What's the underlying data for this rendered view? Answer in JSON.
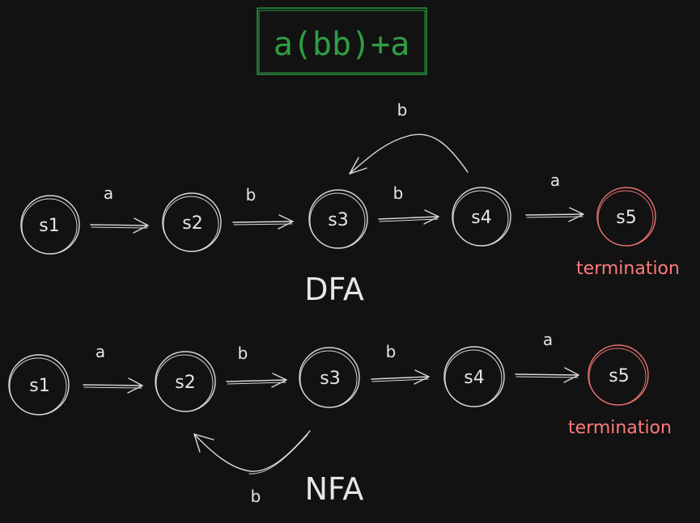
{
  "title": "a(bb)+a",
  "dfa": {
    "label": "DFA",
    "states": [
      "s1",
      "s2",
      "s3",
      "s4",
      "s5"
    ],
    "edges": [
      "a",
      "b",
      "b",
      "a"
    ],
    "loop_label": "b",
    "terminal_label": "termination"
  },
  "nfa": {
    "label": "NFA",
    "states": [
      "s1",
      "s2",
      "s3",
      "s4",
      "s5"
    ],
    "edges": [
      "a",
      "b",
      "b",
      "a"
    ],
    "loop_label": "b",
    "terminal_label": "termination"
  },
  "colors": {
    "background": "#121212",
    "title": "#2f9e44",
    "terminal": "#e8716f",
    "stroke": "#d9d9d9"
  }
}
